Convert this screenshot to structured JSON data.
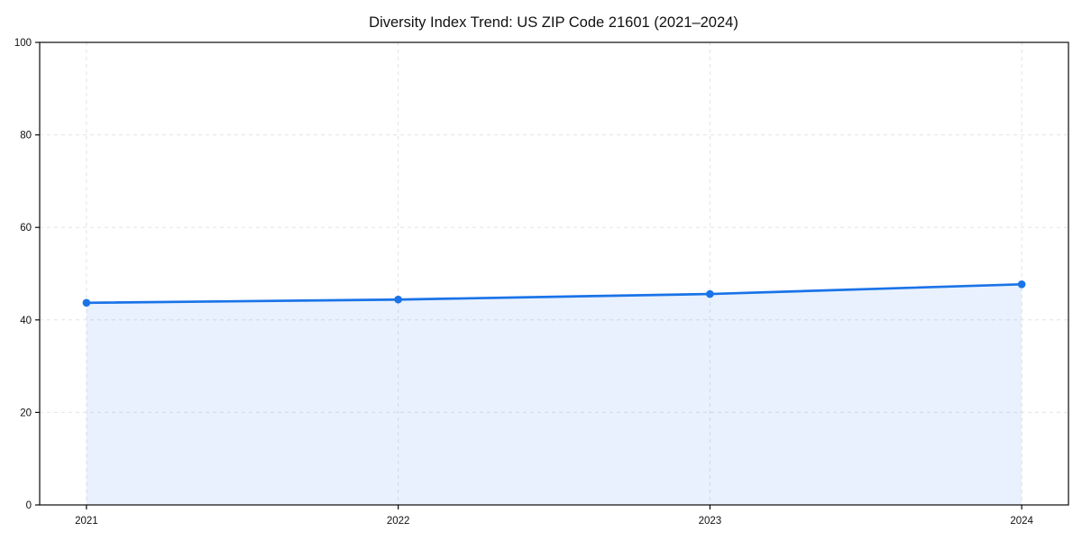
{
  "page": {
    "title": "Diversity Index Trend: US ZIP Code 21601 (2021–2024)"
  },
  "chart_data": {
    "type": "line",
    "title": "Diversity Index Trend: US ZIP Code 21601 (2021–2024)",
    "series_name": "Diversity Index",
    "x": [
      "2021",
      "2022",
      "2023",
      "2024"
    ],
    "values": [
      43.7,
      44.4,
      45.6,
      47.7
    ],
    "xlabel": "",
    "ylabel": "",
    "ylim": [
      0,
      100
    ],
    "yticks": [
      0,
      20,
      40,
      60,
      80,
      100
    ],
    "xticks": [
      "2021",
      "2022",
      "2023",
      "2024"
    ],
    "grid": true,
    "grid_style": "dashed",
    "legend_position": "none",
    "marker": "circle",
    "area_fill": true,
    "colors": {
      "line": "#1a73e8",
      "marker": "#1a73e8",
      "area": "#1a73e8",
      "area_opacity": 0.1,
      "grid": "#e4e4e4",
      "spine": "#0a0a0a",
      "text": "#111111",
      "background": "#ffffff"
    }
  }
}
